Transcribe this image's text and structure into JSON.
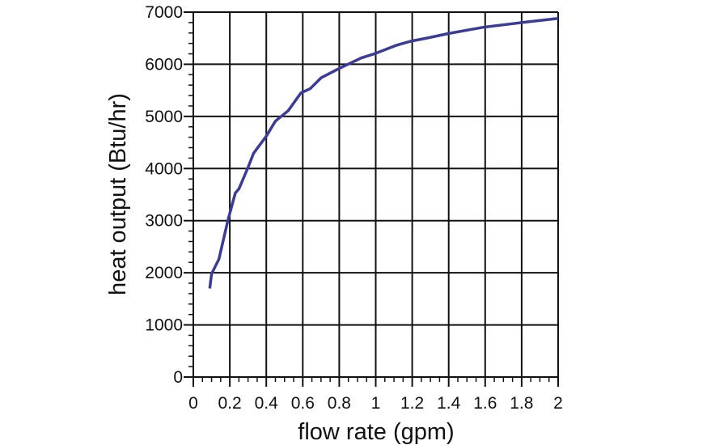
{
  "chart_data": {
    "type": "line",
    "title": "",
    "xlabel": "flow rate (gpm)",
    "ylabel": "heat output (Btu/hr)",
    "xlim": [
      0,
      2
    ],
    "ylim": [
      0,
      7000
    ],
    "grid": true,
    "x_ticks": [
      "0",
      "0.2",
      "0.4",
      "0.6",
      "0.8",
      "1",
      "1.2",
      "1.4",
      "1.6",
      "1.8",
      "2"
    ],
    "y_ticks": [
      "0",
      "1000",
      "2000",
      "3000",
      "4000",
      "5000",
      "6000",
      "7000"
    ],
    "line_color": "#3b3b98",
    "series": [
      {
        "x": [
          0.09,
          0.1,
          0.14,
          0.19,
          0.23,
          0.25,
          0.3,
          0.33,
          0.4,
          0.45,
          0.52,
          0.59,
          0.64,
          0.7,
          0.8,
          0.92,
          1.0,
          1.11,
          1.19,
          1.29,
          1.4,
          1.59,
          1.8,
          2.0
        ],
        "y": [
          1700,
          1980,
          2260,
          3010,
          3530,
          3610,
          4020,
          4290,
          4620,
          4910,
          5110,
          5450,
          5530,
          5740,
          5920,
          6120,
          6210,
          6360,
          6440,
          6510,
          6590,
          6710,
          6800,
          6880
        ]
      }
    ]
  }
}
